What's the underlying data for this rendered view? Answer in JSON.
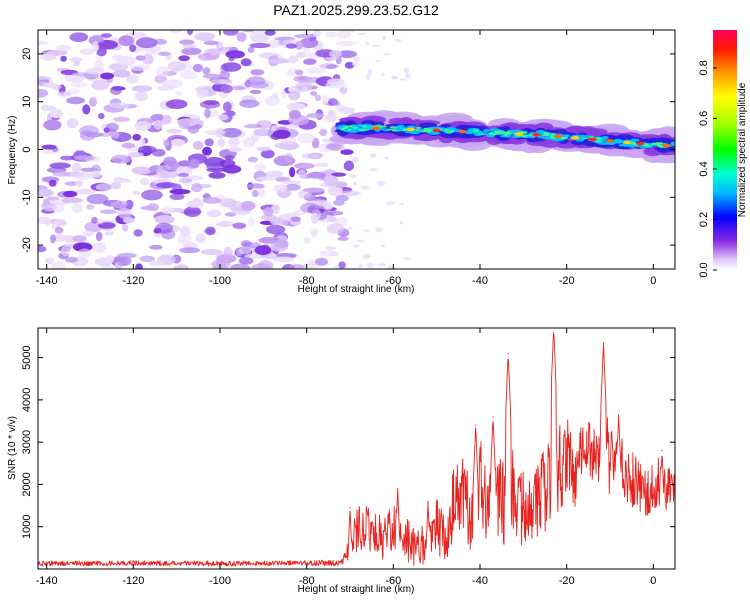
{
  "title": "PAZ1.2025.299.23.52.G12",
  "colors": {
    "snr_line": "#e8231f",
    "frame": "#000000",
    "background": "#ffffff"
  },
  "chart_data": [
    {
      "type": "heatmap",
      "title": "PAZ1.2025.299.23.52.G12",
      "xlabel": "Height of straight line (km)",
      "ylabel": "Frequency (Hz)",
      "xlim": [
        -142,
        5
      ],
      "ylim": [
        -25,
        25
      ],
      "xticks": [
        -140,
        -120,
        -100,
        -80,
        -60,
        -40,
        -20,
        0
      ],
      "xtick_labels": [
        "-140",
        "-120",
        "-100",
        "-80",
        "-60",
        "-40",
        "-20",
        "0"
      ],
      "yticks": [
        -20,
        -10,
        0,
        10,
        20
      ],
      "ytick_labels": [
        "-20",
        "-10",
        "0",
        "10",
        "20"
      ],
      "noise_region_x": [
        -142,
        -70
      ],
      "ridge": {
        "x": [
          -72,
          -65,
          -60,
          -55,
          -50,
          -45,
          -40,
          -35,
          -30,
          -25,
          -20,
          -15,
          -10,
          -5,
          0,
          5
        ],
        "freq": [
          4.5,
          4.5,
          4.3,
          4.2,
          4.0,
          3.8,
          3.6,
          3.4,
          3.2,
          3.0,
          2.6,
          2.2,
          1.8,
          1.4,
          1.0,
          0.8
        ]
      },
      "colorbar": {
        "label": "Normalized spectral amplitude",
        "range": [
          0,
          0.95
        ],
        "ticks": [
          0.0,
          0.2,
          0.4,
          0.6,
          0.8
        ],
        "tick_labels": [
          "0.0",
          "0.2",
          "0.4",
          "0.6",
          "0.8"
        ]
      }
    },
    {
      "type": "line",
      "xlabel": "Height of straight line (km)",
      "ylabel": "SNR (10 * v/v)",
      "xlim": [
        -142,
        5
      ],
      "ylim": [
        0,
        5700
      ],
      "xticks": [
        -140,
        -120,
        -100,
        -80,
        -60,
        -40,
        -20,
        0
      ],
      "xtick_labels": [
        "-140",
        "-120",
        "-100",
        "-80",
        "-60",
        "-40",
        "-20",
        "0"
      ],
      "yticks": [
        1000,
        2000,
        3000,
        4000,
        5000
      ],
      "ytick_labels": [
        "1000",
        "2000",
        "3000",
        "4000",
        "5000"
      ],
      "envelope": {
        "x": [
          -142,
          -120,
          -100,
          -80,
          -72,
          -70,
          -68,
          -65,
          -62,
          -60,
          -56,
          -52,
          -50,
          -48,
          -46,
          -44,
          -42,
          -40,
          -38,
          -36,
          -34,
          -33,
          -32,
          -30,
          -28,
          -26,
          -24,
          -23,
          -22,
          -20,
          -18,
          -16,
          -14,
          -12,
          -11,
          -10,
          -8,
          -6,
          -5,
          -4,
          -2,
          0,
          2,
          4,
          5
        ],
        "base": [
          130,
          140,
          130,
          140,
          140,
          500,
          1000,
          900,
          700,
          1000,
          600,
          500,
          1100,
          900,
          1500,
          1800,
          1200,
          2000,
          1400,
          1800,
          1500,
          2200,
          1300,
          1600,
          1300,
          1800,
          2000,
          2500,
          2300,
          2800,
          2000,
          3000,
          2800,
          2700,
          3000,
          2500,
          2700,
          2200,
          2000,
          2100,
          1800,
          1900,
          2100,
          1900,
          1800
        ],
        "spread": [
          60,
          60,
          60,
          60,
          80,
          300,
          600,
          500,
          500,
          600,
          500,
          500,
          700,
          800,
          900,
          900,
          900,
          1100,
          1000,
          1000,
          1000,
          1500,
          900,
          1000,
          900,
          1100,
          1100,
          1400,
          1200,
          900,
          700,
          700,
          700,
          700,
          900,
          900,
          600,
          700,
          800,
          600,
          600,
          600,
          700,
          500,
          400
        ]
      },
      "peaks": {
        "x": [
          -70,
          -59,
          -52,
          -41,
          -37,
          -33.5,
          -23,
          -11.5,
          -8,
          2
        ],
        "y": [
          1450,
          1900,
          1600,
          3400,
          3600,
          5100,
          5700,
          5350,
          3650,
          2800
        ]
      }
    }
  ]
}
